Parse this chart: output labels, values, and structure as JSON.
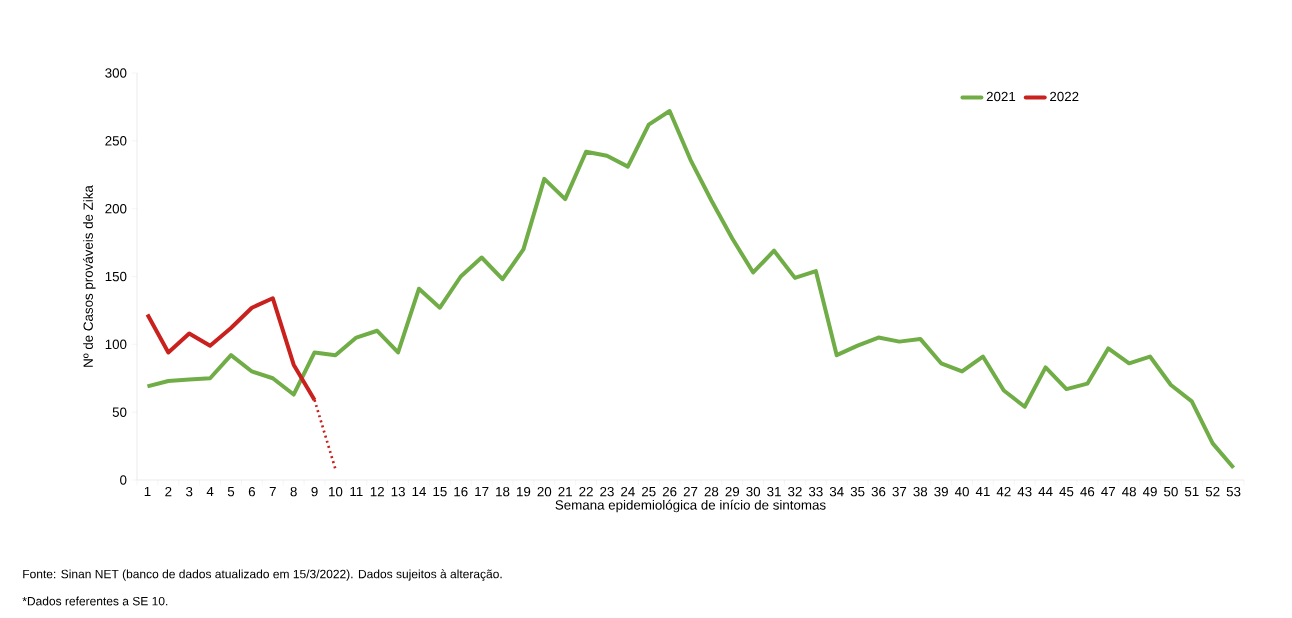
{
  "chart_data": {
    "type": "line",
    "xlabel": "Semana epidemiológica de início de sintomas",
    "ylabel": "Nº de Casos prováveis de Zika",
    "annotations": [
      "Fonte: Sinan NET (banco de dados atualizado em 15/3/2022). Dados sujeitos à alteração.",
      "*Dados referentes a SE 10."
    ],
    "categories": [
      "1",
      "2",
      "3",
      "4",
      "5",
      "6",
      "7",
      "8",
      "9",
      "10",
      "11",
      "12",
      "13",
      "14",
      "15",
      "16",
      "17",
      "18",
      "19",
      "20",
      "21",
      "22",
      "23",
      "24",
      "25",
      "26",
      "27",
      "28",
      "29",
      "30",
      "31",
      "32",
      "33",
      "34",
      "35",
      "36",
      "37",
      "38",
      "39",
      "40",
      "41",
      "42",
      "43",
      "44",
      "45",
      "46",
      "47",
      "48",
      "49",
      "50",
      "51",
      "52",
      "53"
    ],
    "series": [
      {
        "name": "2021",
        "color": "#70ad47",
        "values": [
          69,
          73,
          74,
          75,
          92,
          80,
          75,
          63,
          94,
          92,
          105,
          110,
          94,
          141,
          127,
          150,
          164,
          148,
          170,
          222,
          207,
          242,
          239,
          231,
          262,
          272,
          236,
          206,
          178,
          153,
          169,
          149,
          154,
          92,
          99,
          105,
          102,
          104,
          86,
          80,
          91,
          66,
          54,
          83,
          67,
          71,
          97,
          86,
          91,
          70,
          58,
          27,
          9
        ]
      },
      {
        "name": "2022",
        "color": "#c9211e",
        "values": [
          122,
          94,
          108,
          99,
          112,
          127,
          134,
          85,
          59,
          null,
          null,
          null,
          null,
          null,
          null,
          null,
          null,
          null,
          null,
          null,
          null,
          null,
          null,
          null,
          null,
          null,
          null,
          null,
          null,
          null,
          null,
          null,
          null,
          null,
          null,
          null,
          null,
          null,
          null,
          null,
          null,
          null,
          null,
          null,
          null,
          null,
          null,
          null,
          null,
          null,
          null,
          null,
          null
        ]
      },
      {
        "color": "#c9211e",
        "line_style": "dotted",
        "values": [
          null,
          null,
          null,
          null,
          null,
          null,
          null,
          null,
          59,
          8,
          null,
          null,
          null,
          null,
          null,
          null,
          null,
          null,
          null,
          null,
          null,
          null,
          null,
          null,
          null,
          null,
          null,
          null,
          null,
          null,
          null,
          null,
          null,
          null,
          null,
          null,
          null,
          null,
          null,
          null,
          null,
          null,
          null,
          null,
          null,
          null,
          null,
          null,
          null,
          null,
          null,
          null,
          null
        ]
      }
    ],
    "ylim": [
      0,
      300
    ],
    "yticks": [
      0,
      50,
      100,
      150,
      200,
      250,
      300
    ],
    "legend": "top right"
  }
}
